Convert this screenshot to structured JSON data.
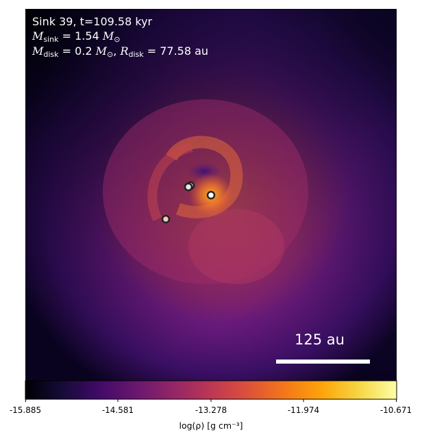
{
  "annotation": {
    "line1": "Sink 39, t=109.58 kyr",
    "m_sink_sub": "sink",
    "m_sink_value": "= 1.54",
    "m_disk_sub": "disk",
    "m_disk_value": "= 0.2",
    "r_disk_sub": "disk",
    "r_disk_value": "= 77.58",
    "unit_au": "au",
    "sun_symbol": "⊙"
  },
  "scale_bar": {
    "label": "125 au"
  },
  "colorbar": {
    "ticks": [
      "-15.885",
      "-14.581",
      "-13.278",
      "-11.974",
      "-10.671"
    ],
    "label": "log(ρ) [g cm⁻³]",
    "colormap": "inferno"
  },
  "sinks": [
    {
      "fill": "#d9d9d9"
    },
    {
      "fill": "#e8e8e8"
    },
    {
      "fill": "#ffffff"
    },
    {
      "fill": "#f2c9c0"
    }
  ]
}
